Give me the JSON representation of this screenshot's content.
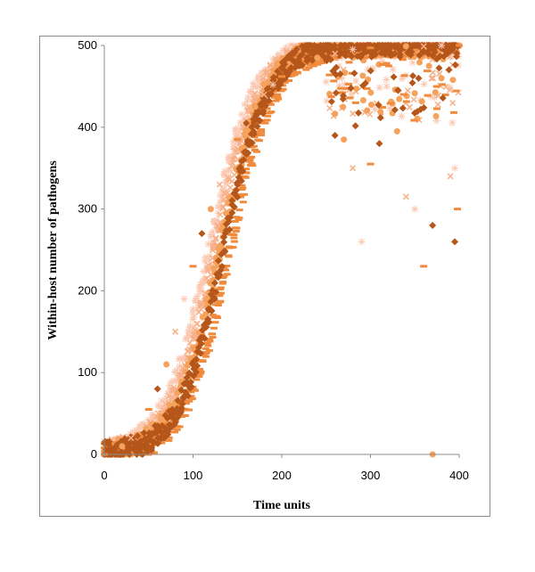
{
  "chart_data": {
    "type": "scatter",
    "title": "",
    "xlabel": "Time units",
    "ylabel": "Within-host number of pathogens",
    "xlim": [
      0,
      400
    ],
    "ylim": [
      0,
      500
    ],
    "xticks": [
      "0",
      "100",
      "200",
      "300",
      "400"
    ],
    "yticks": [
      "0",
      "100",
      "200",
      "300",
      "400",
      "500"
    ],
    "grid": false,
    "legend": "none",
    "logistic_fit": {
      "carrying_capacity": 500,
      "midpoint": 130,
      "rate": 0.04
    },
    "series": [
      {
        "marker": "dash",
        "color": "#f08a3c",
        "offset": -12,
        "values_note": ""
      },
      {
        "marker": "diamond",
        "color": "#b5561a",
        "offset": -4
      },
      {
        "marker": "circle",
        "color": "#f5a25c",
        "offset": 0
      },
      {
        "marker": "cross",
        "color": "#f7b089",
        "offset": 6
      },
      {
        "marker": "asterisk",
        "color": "#fbc9b2",
        "offset": 12
      }
    ],
    "points": [
      [
        0,
        0
      ],
      [
        10,
        5
      ],
      [
        20,
        10
      ],
      [
        30,
        20
      ],
      [
        40,
        35
      ],
      [
        50,
        55
      ],
      [
        60,
        80
      ],
      [
        70,
        110
      ],
      [
        80,
        150
      ],
      [
        90,
        190
      ],
      [
        100,
        230
      ],
      [
        110,
        270
      ],
      [
        120,
        300
      ],
      [
        130,
        330
      ],
      [
        140,
        360
      ],
      [
        150,
        385
      ],
      [
        160,
        405
      ],
      [
        170,
        425
      ],
      [
        180,
        440
      ],
      [
        190,
        452
      ],
      [
        200,
        462
      ],
      [
        220,
        475
      ],
      [
        240,
        485
      ],
      [
        260,
        490
      ],
      [
        280,
        495
      ],
      [
        300,
        497
      ],
      [
        320,
        498
      ],
      [
        340,
        499
      ],
      [
        360,
        499
      ],
      [
        380,
        500
      ],
      [
        400,
        500
      ],
      [
        260,
        390
      ],
      [
        270,
        385
      ],
      [
        280,
        350
      ],
      [
        290,
        260
      ],
      [
        300,
        355
      ],
      [
        310,
        380
      ],
      [
        330,
        395
      ],
      [
        340,
        315
      ],
      [
        350,
        300
      ],
      [
        360,
        230
      ],
      [
        370,
        280
      ],
      [
        380,
        460
      ],
      [
        390,
        340
      ],
      [
        395,
        350
      ],
      [
        398,
        300
      ],
      [
        395,
        260
      ],
      [
        370,
        0
      ]
    ]
  }
}
